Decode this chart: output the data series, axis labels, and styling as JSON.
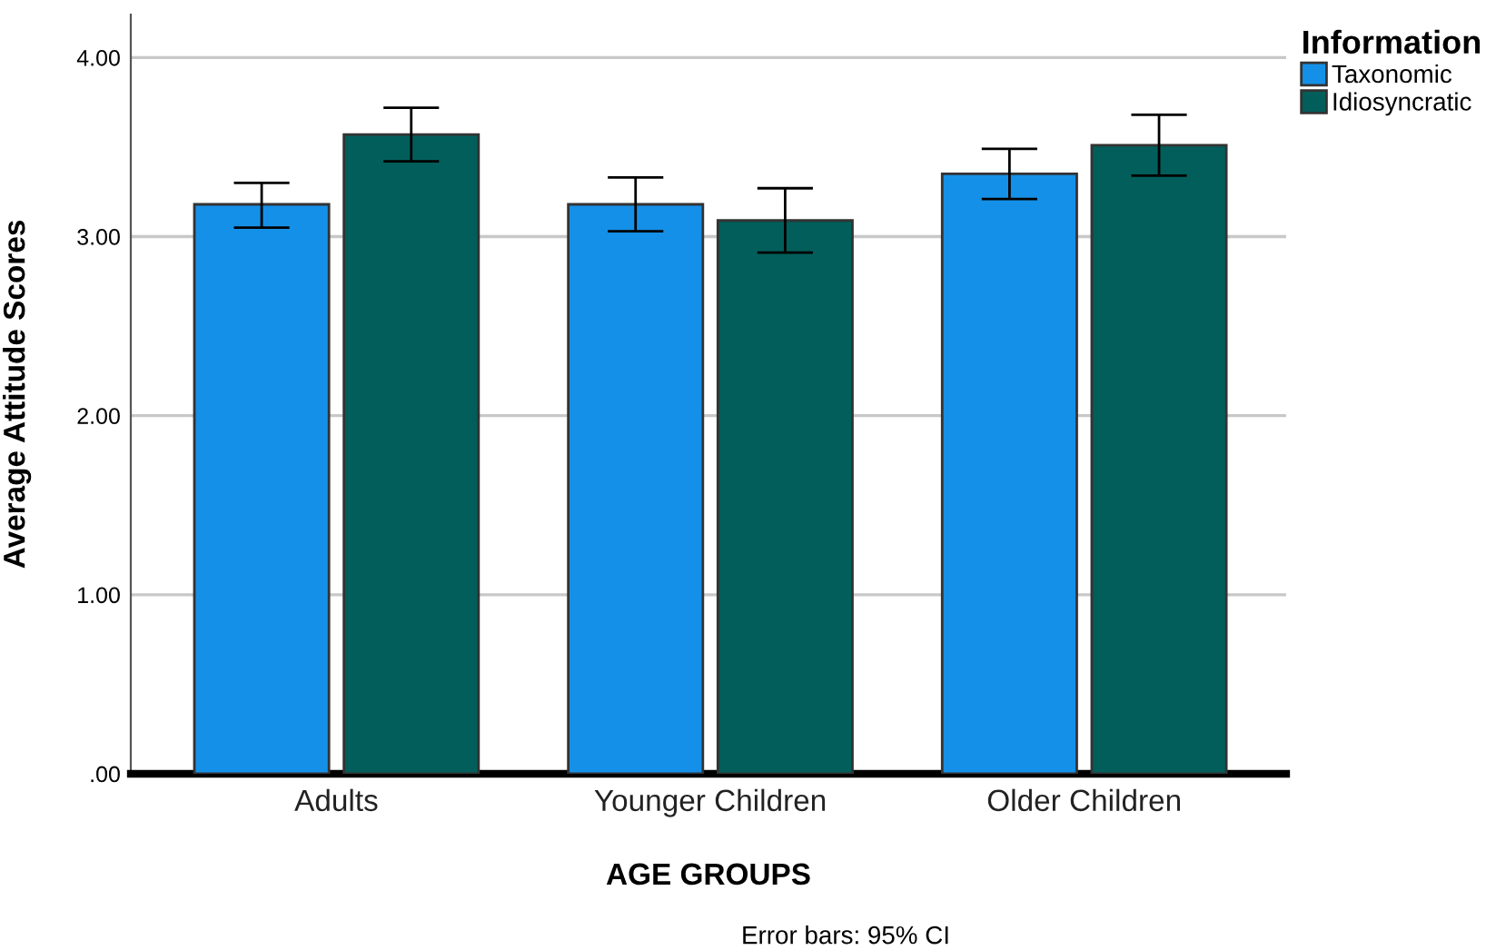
{
  "chart_data": {
    "type": "bar",
    "categories": [
      "Adults",
      "Younger Children",
      "Older Children"
    ],
    "series": [
      {
        "name": "Taxonomic",
        "color": "#1590e8",
        "values": [
          3.18,
          3.18,
          3.35
        ],
        "errors": [
          [
            3.05,
            3.3
          ],
          [
            3.03,
            3.33
          ],
          [
            3.21,
            3.49
          ]
        ]
      },
      {
        "name": "Idiosyncratic",
        "color": "#025e5a",
        "values": [
          3.57,
          3.09,
          3.51
        ],
        "errors": [
          [
            3.42,
            3.72
          ],
          [
            2.91,
            3.27
          ],
          [
            3.34,
            3.68
          ]
        ]
      }
    ],
    "xlabel": "AGE GROUPS",
    "ylabel": "Average Attitude Scores",
    "legend_title": "Information",
    "ylim": [
      0,
      4.24
    ],
    "yticks": [
      {
        "value": 0,
        "label": ".00"
      },
      {
        "value": 1,
        "label": "1.00"
      },
      {
        "value": 2,
        "label": "2.00"
      },
      {
        "value": 3,
        "label": "3.00"
      },
      {
        "value": 4,
        "label": "4.00"
      }
    ],
    "grid": "y",
    "legend": "top right",
    "annotations": [
      "Error bars: 95% CI"
    ]
  }
}
